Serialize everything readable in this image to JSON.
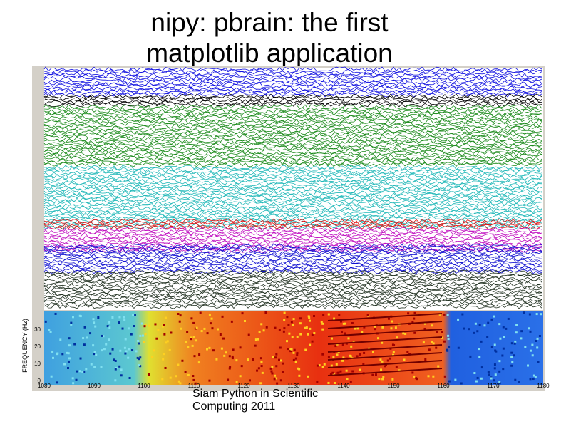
{
  "slide": {
    "title_lines": [
      "nipy: pbrain: the first",
      "matplotlib application"
    ],
    "figure": {
      "y_label": "FREQUENCY (Hz)",
      "y_ticks": [
        "30",
        "20",
        "10",
        "0"
      ],
      "x_ticks": [
        "1080",
        "1090",
        "1100",
        "1110",
        "1120",
        "1130",
        "1140",
        "1150",
        "1160",
        "1170",
        "1180"
      ]
    },
    "footer_lines": [
      "Siam Python in Scientific",
      "Computing 2011"
    ]
  }
}
